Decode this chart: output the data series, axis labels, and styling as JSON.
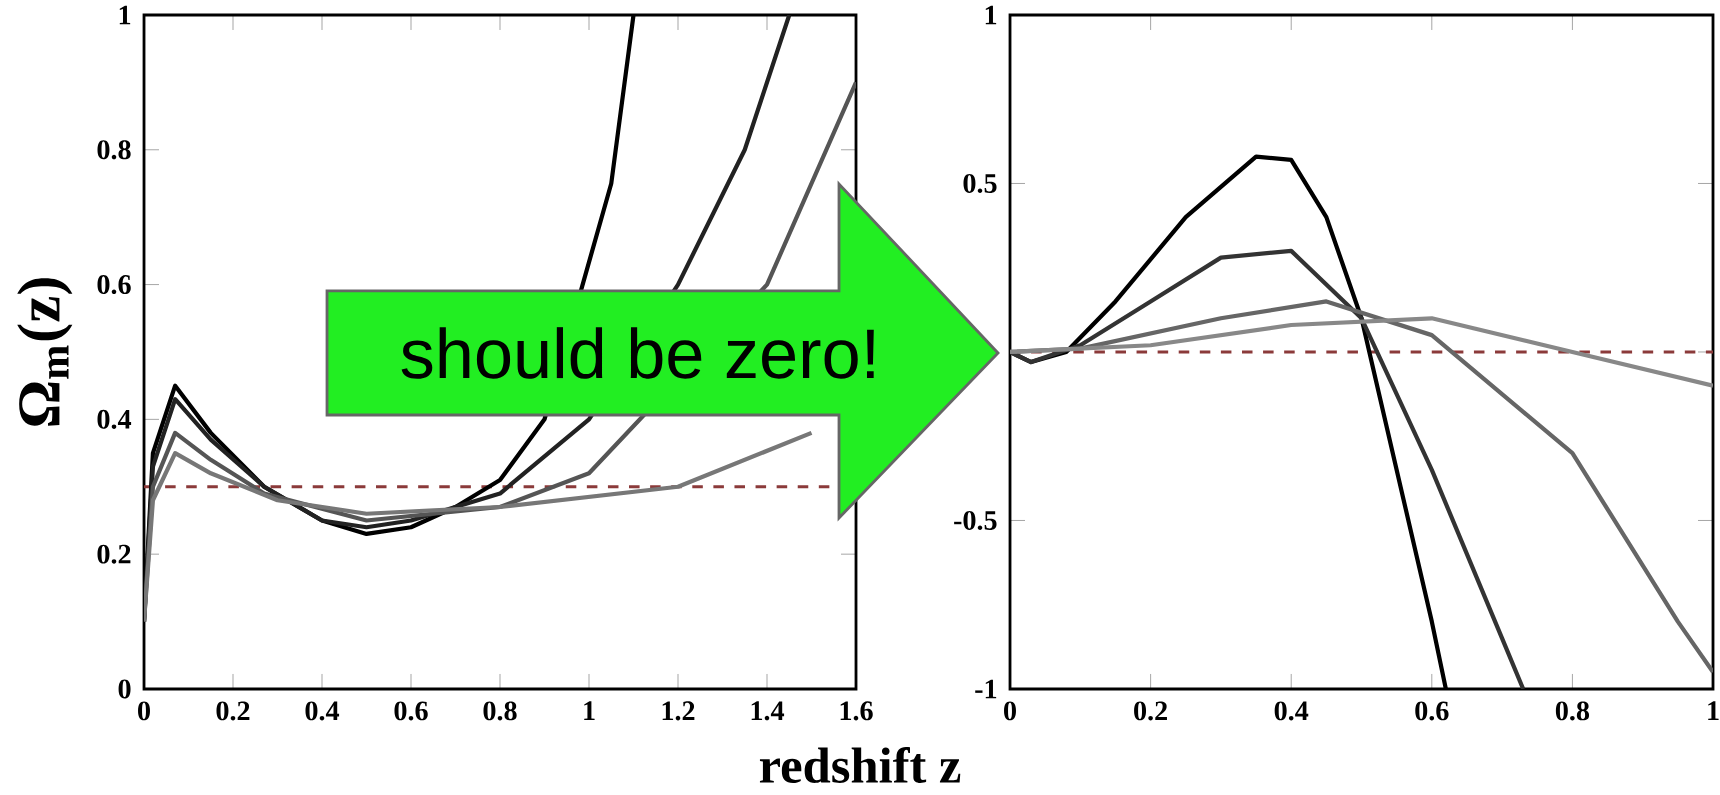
{
  "chart_data": [
    {
      "type": "line",
      "xlabel": "redshift z",
      "ylabel": "Ω$_{m}$(z)",
      "xlim": [
        0,
        1.6
      ],
      "ylim": [
        0,
        1
      ],
      "xticks": [
        0,
        0.2,
        0.4,
        0.6,
        0.8,
        1,
        1.2,
        1.4,
        1.6
      ],
      "yticks": [
        0,
        0.2,
        0.4,
        0.6,
        0.8,
        1
      ],
      "annotations": [
        "should be zero!"
      ],
      "ref_lines": [
        {
          "axis": "y",
          "value": 0.3,
          "color": "#8b3a3a",
          "line_style": "dashed"
        }
      ],
      "series": [
        {
          "color": "#000000",
          "x": [
            0,
            0.02,
            0.07,
            0.15,
            0.27,
            0.4,
            0.5,
            0.6,
            0.7,
            0.8,
            0.9,
            1.0,
            1.05,
            1.1
          ],
          "values": [
            0.1,
            0.35,
            0.45,
            0.38,
            0.3,
            0.25,
            0.23,
            0.24,
            0.27,
            0.31,
            0.4,
            null,
            0.75,
            1.0
          ]
        },
        {
          "color": "#222222",
          "x": [
            0,
            0.02,
            0.07,
            0.15,
            0.27,
            0.4,
            0.5,
            0.6,
            0.8,
            1.0,
            1.2,
            1.35,
            1.45
          ],
          "values": [
            0.1,
            0.33,
            0.43,
            0.37,
            0.3,
            0.25,
            0.24,
            0.25,
            0.29,
            0.4,
            0.6,
            0.8,
            1.0
          ]
        },
        {
          "color": "#555555",
          "x": [
            0,
            0.02,
            0.07,
            0.15,
            0.27,
            0.5,
            0.8,
            1.0,
            1.2,
            1.4,
            1.6
          ],
          "values": [
            0.1,
            0.3,
            0.38,
            0.34,
            0.29,
            0.25,
            0.27,
            0.32,
            null,
            0.6,
            0.9
          ]
        },
        {
          "color": "#777777",
          "x": [
            0,
            0.02,
            0.07,
            0.15,
            0.3,
            0.5,
            0.8,
            1.2,
            1.5
          ],
          "values": [
            0.1,
            0.28,
            0.35,
            0.32,
            0.28,
            0.26,
            0.27,
            0.3,
            0.38
          ]
        }
      ]
    },
    {
      "type": "line",
      "xlim": [
        0,
        1
      ],
      "ylim": [
        -1,
        1
      ],
      "xticks": [
        0,
        0.2,
        0.4,
        0.6,
        0.8,
        1
      ],
      "yticks": [
        -1,
        -0.5,
        {
          "value": 0,
          "label": null
        },
        0.5,
        1
      ],
      "ref_lines": [
        {
          "axis": "y",
          "value": 0,
          "color": "#8b3a3a",
          "line_style": "dashed"
        }
      ],
      "series": [
        {
          "color": "#000000",
          "x": [
            0,
            0.03,
            0.08,
            0.15,
            0.25,
            0.35,
            0.4,
            0.45,
            0.5,
            0.55,
            0.6,
            0.62
          ],
          "values": [
            0,
            -0.03,
            0,
            0.15,
            0.4,
            0.58,
            0.57,
            0.4,
            0.1,
            -0.35,
            -0.8,
            -1
          ]
        },
        {
          "color": "#333333",
          "x": [
            0,
            0.03,
            0.1,
            0.2,
            0.3,
            0.4,
            0.5,
            0.6,
            0.7,
            0.73
          ],
          "values": [
            0,
            -0.03,
            0.02,
            0.15,
            0.28,
            0.3,
            0.1,
            -0.35,
            -0.85,
            -1
          ]
        },
        {
          "color": "#666666",
          "x": [
            0,
            0.1,
            0.3,
            0.45,
            0.6,
            0.8,
            0.95,
            1.0
          ],
          "values": [
            0,
            0.01,
            0.1,
            0.15,
            0.05,
            -0.3,
            -0.8,
            -0.95
          ]
        },
        {
          "color": "#888888",
          "x": [
            0,
            0.2,
            0.4,
            0.6,
            0.8,
            1.0
          ],
          "values": [
            0,
            0.02,
            0.08,
            0.1,
            0,
            -0.1
          ]
        }
      ]
    }
  ]
}
